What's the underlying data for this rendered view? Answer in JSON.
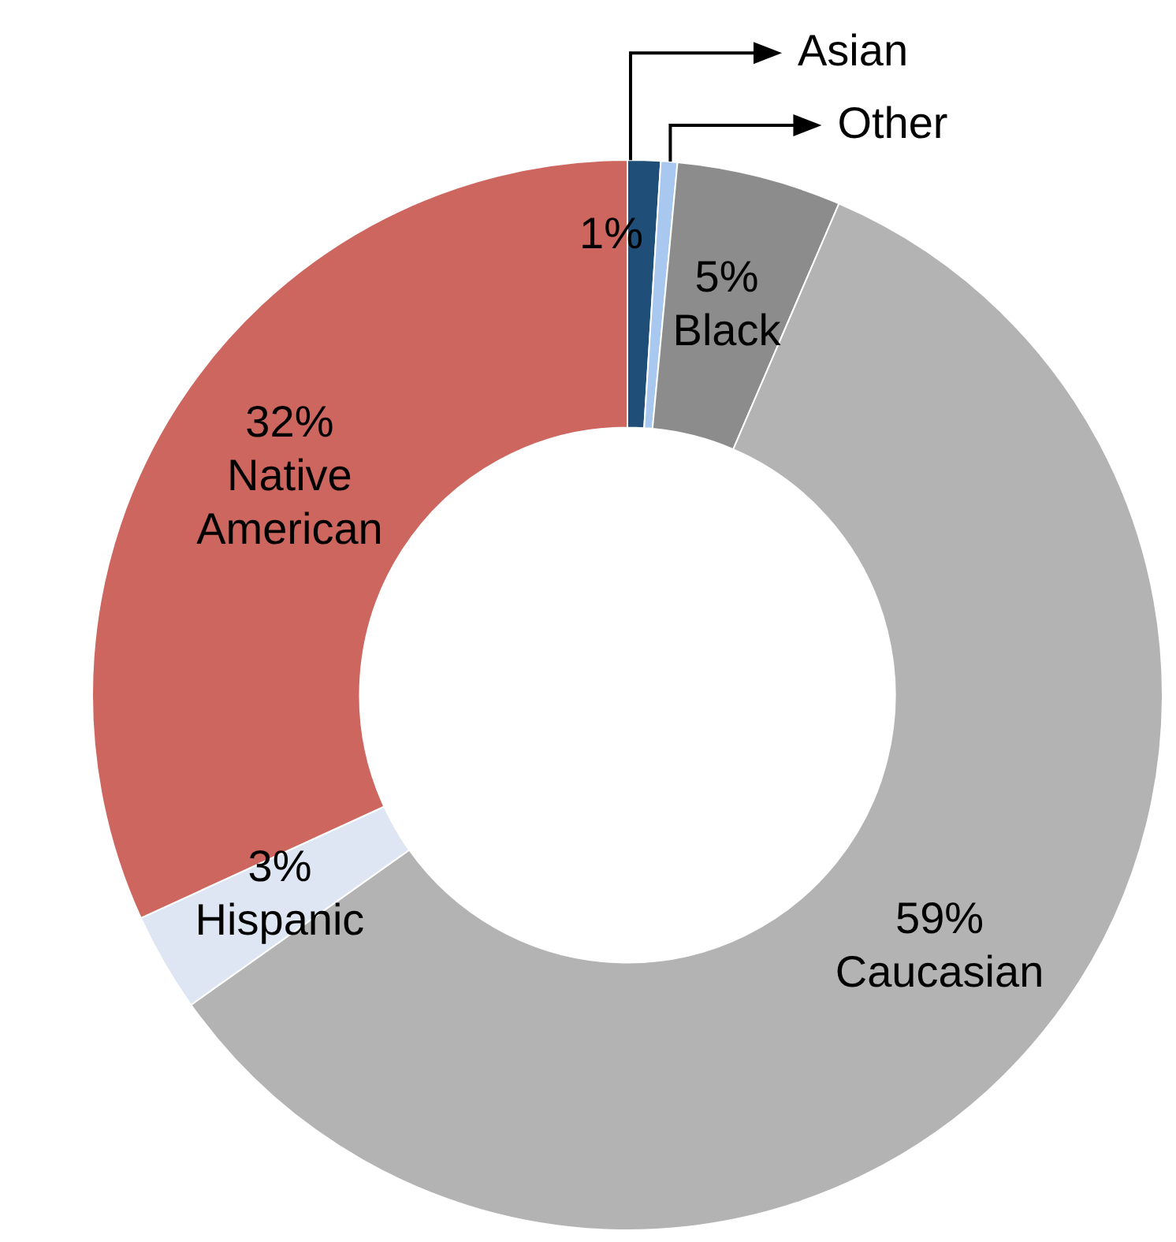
{
  "chart_data": {
    "type": "donut",
    "categories": [
      "Asian",
      "Other",
      "Black",
      "Caucasian",
      "Hispanic",
      "Native American"
    ],
    "values": [
      1,
      0.5,
      5,
      59,
      3,
      32
    ],
    "value_labels": [
      "1%",
      null,
      "5%",
      "59%",
      "3%",
      "32%"
    ],
    "colors": [
      "#1f4e79",
      "#a9c8f0",
      "#8c8c8c",
      "#b3b3b3",
      "#dde6f2",
      "#cd665e"
    ],
    "legend": false
  }
}
